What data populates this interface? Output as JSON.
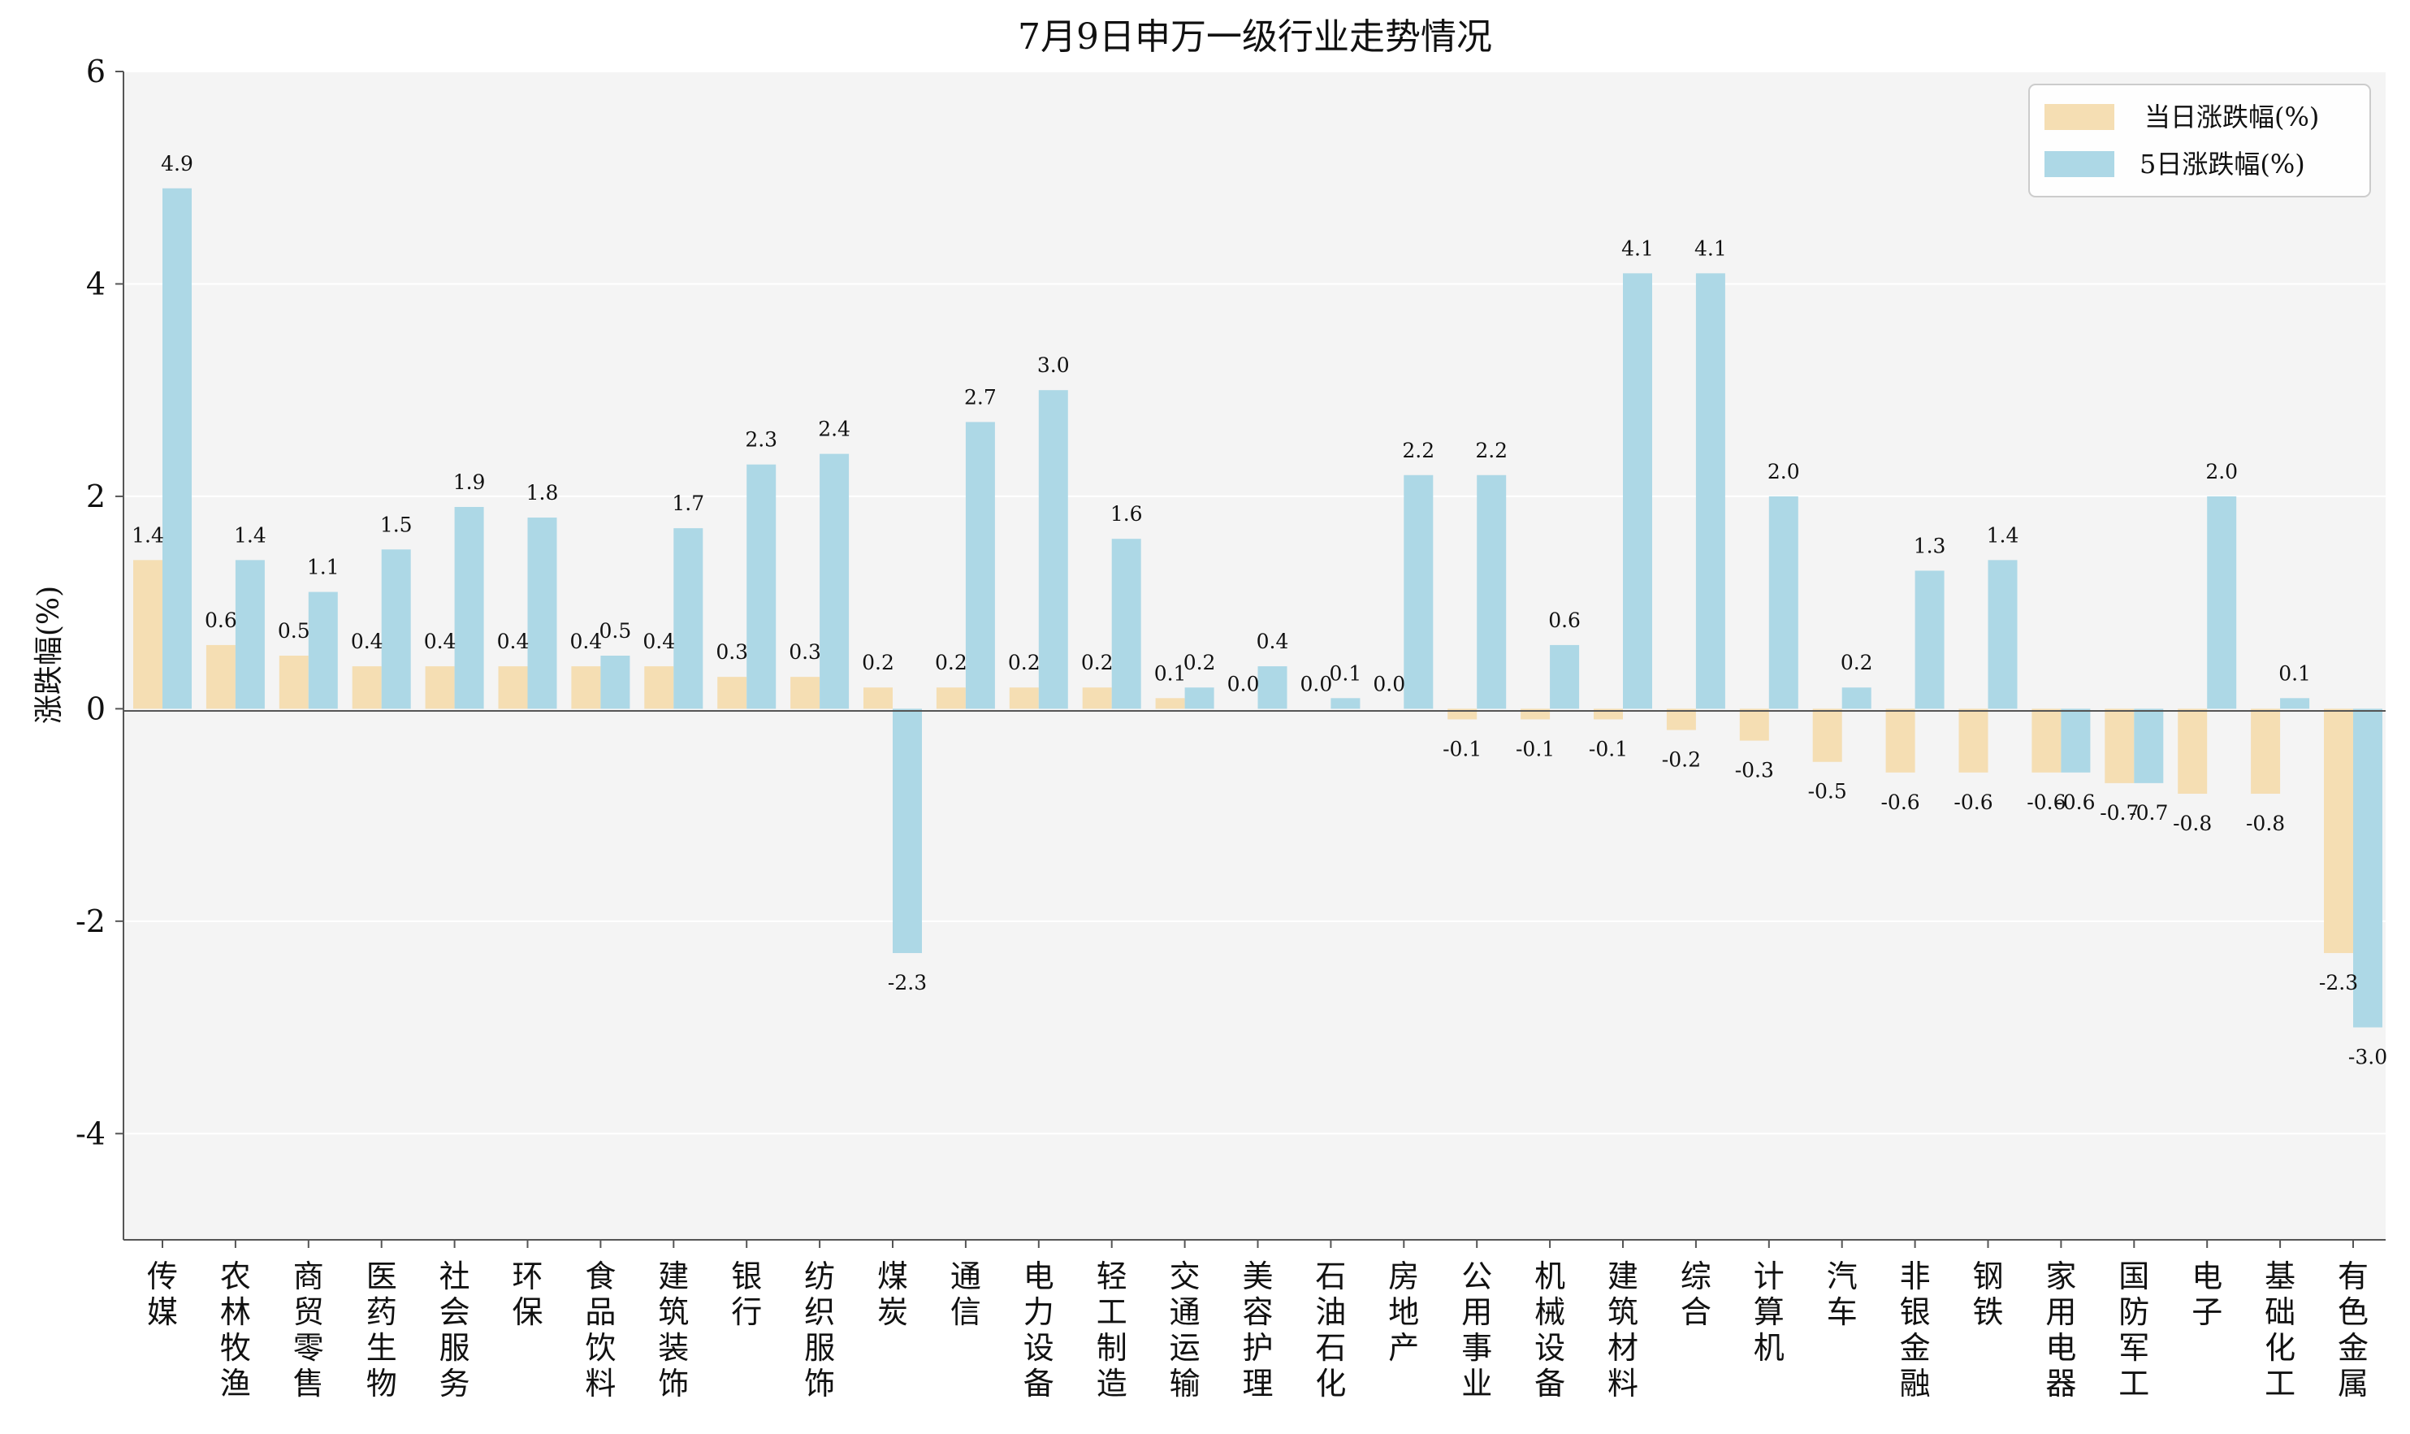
{
  "chart_data": {
    "type": "bar",
    "title": "7月9日申万一级行业走势情况",
    "ylabel": "涨跌幅(%)",
    "xlabel": "",
    "ylim": [
      -5,
      6
    ],
    "yticks": [
      6,
      4,
      2,
      0,
      -2,
      -4
    ],
    "legend_position": "top-right",
    "grid": true,
    "categories": [
      "传媒",
      "农林牧渔",
      "商贸零售",
      "医药生物",
      "社会服务",
      "环保",
      "食品饮料",
      "建筑装饰",
      "银行",
      "纺织服饰",
      "煤炭",
      "通信",
      "电力设备",
      "轻工制造",
      "交通运输",
      "美容护理",
      "石油石化",
      "房地产",
      "公用事业",
      "机械设备",
      "建筑材料",
      "综合",
      "计算机",
      "汽车",
      "非银金融",
      "钢铁",
      "家用电器",
      "国防军工",
      "电子",
      "基础化工",
      "有色金属"
    ],
    "series": [
      {
        "name": "当日涨跌幅(%)",
        "color": "#f5deb3",
        "values": [
          1.4,
          0.6,
          0.5,
          0.4,
          0.4,
          0.4,
          0.4,
          0.4,
          0.3,
          0.3,
          0.2,
          0.2,
          0.2,
          0.2,
          0.1,
          0.0,
          0.0,
          0.0,
          -0.1,
          -0.1,
          -0.1,
          -0.2,
          -0.3,
          -0.5,
          -0.6,
          -0.6,
          -0.6,
          -0.7,
          -0.8,
          -0.8,
          -2.3
        ]
      },
      {
        "name": "5日涨跌幅(%)",
        "color": "#add8e6",
        "values": [
          4.9,
          1.4,
          1.1,
          1.5,
          1.9,
          1.8,
          0.5,
          1.7,
          2.3,
          2.4,
          -2.3,
          2.7,
          3.0,
          1.6,
          0.2,
          0.4,
          0.1,
          2.2,
          2.2,
          0.6,
          4.1,
          4.1,
          2.0,
          0.2,
          1.3,
          1.4,
          -0.6,
          -0.7,
          2.0,
          0.1,
          -3.0
        ]
      }
    ]
  }
}
